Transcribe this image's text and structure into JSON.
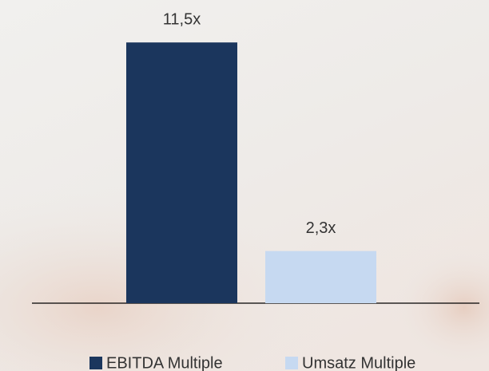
{
  "chart_data": {
    "type": "bar",
    "categories": [
      null
    ],
    "series": [
      {
        "name": "EBITDA Multiple",
        "color": "#1b365d",
        "values": [
          11.5
        ],
        "value_labels": [
          "11,5x"
        ]
      },
      {
        "name": "Umsatz Multiple",
        "color": "#c6d9f1",
        "values": [
          2.3
        ],
        "value_labels": [
          "2,3x"
        ]
      }
    ],
    "ylim": [
      0,
      12
    ]
  }
}
